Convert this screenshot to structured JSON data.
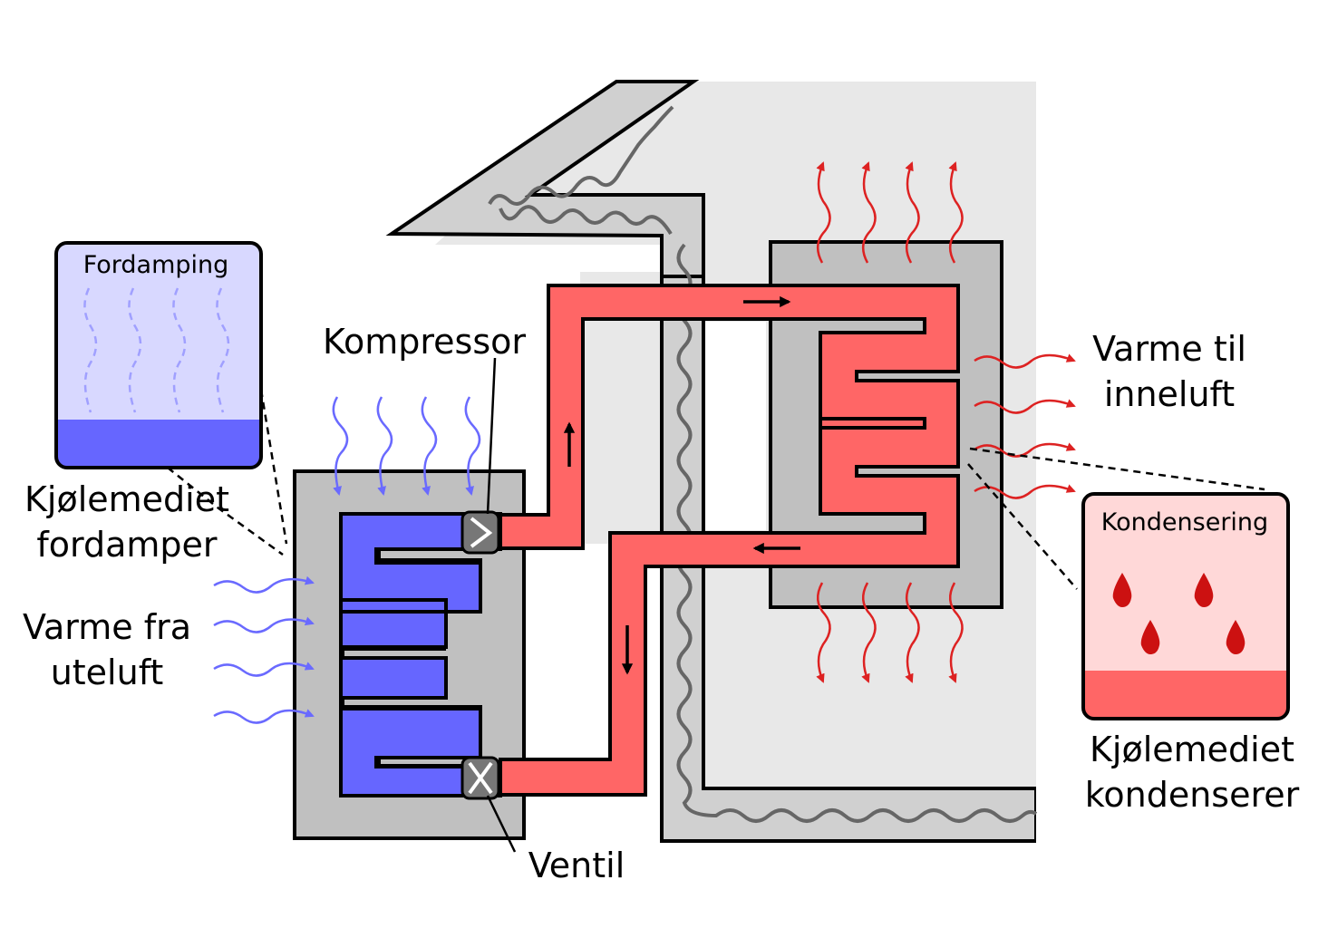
{
  "labels": {
    "fordamping": "Fordamping",
    "kondensering": "Kondensering",
    "kompressor": "Kompressor",
    "ventil": "Ventil",
    "kjolemediet_fordamper_1": "Kjølemediet",
    "kjolemediet_fordamper_2": "fordamper",
    "varme_fra_1": "Varme fra",
    "varme_fra_2": "uteluft",
    "varme_til_1": "Varme til",
    "varme_til_2": "inneluft",
    "kjolemediet_kondenserer_1": "Kjølemediet",
    "kjolemediet_kondenserer_2": "kondenserer"
  },
  "colors": {
    "cold_refrigerant": "#6666ff",
    "hot_refrigerant": "#ff6666",
    "cold_wave": "#6a6aff",
    "hot_wave": "#dd2222",
    "unit_gray": "#c0c0c0",
    "house_fill": "#e8e8e8",
    "wall_fill": "#d0d0d0",
    "evap_inset_top": "#d8d8ff",
    "cond_inset_top": "#ffd8d8"
  },
  "icons": {
    "compressor": "compressor-icon",
    "valve": "valve-icon",
    "droplet": "droplet-icon"
  }
}
